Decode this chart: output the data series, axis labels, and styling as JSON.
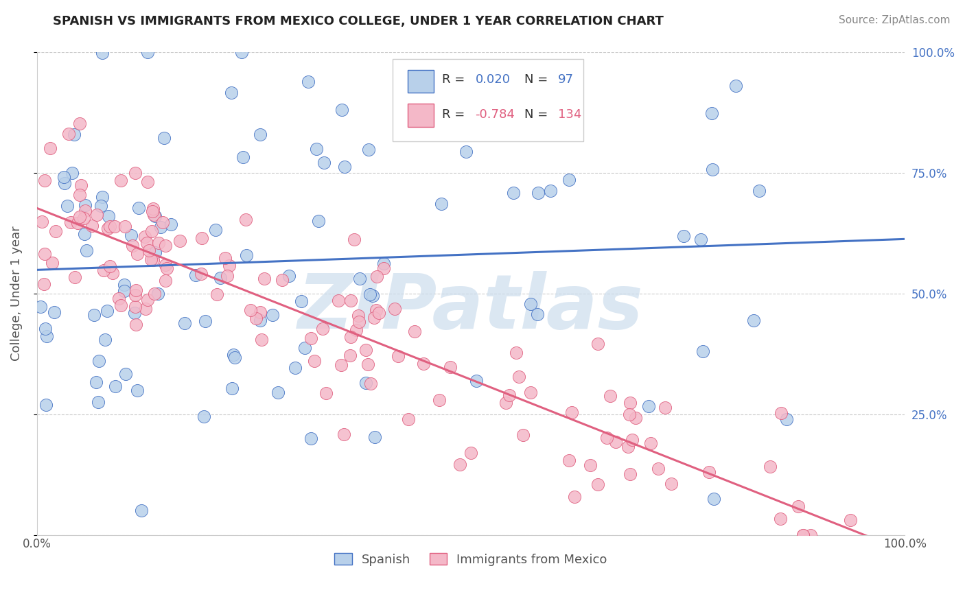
{
  "title": "SPANISH VS IMMIGRANTS FROM MEXICO COLLEGE, UNDER 1 YEAR CORRELATION CHART",
  "source": "Source: ZipAtlas.com",
  "ylabel": "College, Under 1 year",
  "r_spanish": 0.02,
  "n_spanish": 97,
  "r_mexico": -0.784,
  "n_mexico": 134,
  "blue_fill": "#b8d0ea",
  "blue_edge": "#4472c4",
  "pink_fill": "#f4b8c8",
  "pink_edge": "#e06080",
  "blue_line": "#4472c4",
  "pink_line": "#e06080",
  "watermark": "ZIPatlas",
  "watermark_color": "#ccdded",
  "grid_color": "#cccccc",
  "figsize": [
    14.06,
    8.92
  ],
  "dpi": 100,
  "xlim": [
    0.0,
    1.0
  ],
  "ylim": [
    0.0,
    1.0
  ],
  "x_ticks": [
    0.0,
    0.25,
    0.5,
    0.75,
    1.0
  ],
  "x_labels": [
    "0.0%",
    "",
    "",
    "",
    "100.0%"
  ],
  "y_ticks": [
    0.0,
    0.25,
    0.5,
    0.75,
    1.0
  ],
  "y_right_labels": [
    "",
    "25.0%",
    "50.0%",
    "75.0%",
    "100.0%"
  ]
}
